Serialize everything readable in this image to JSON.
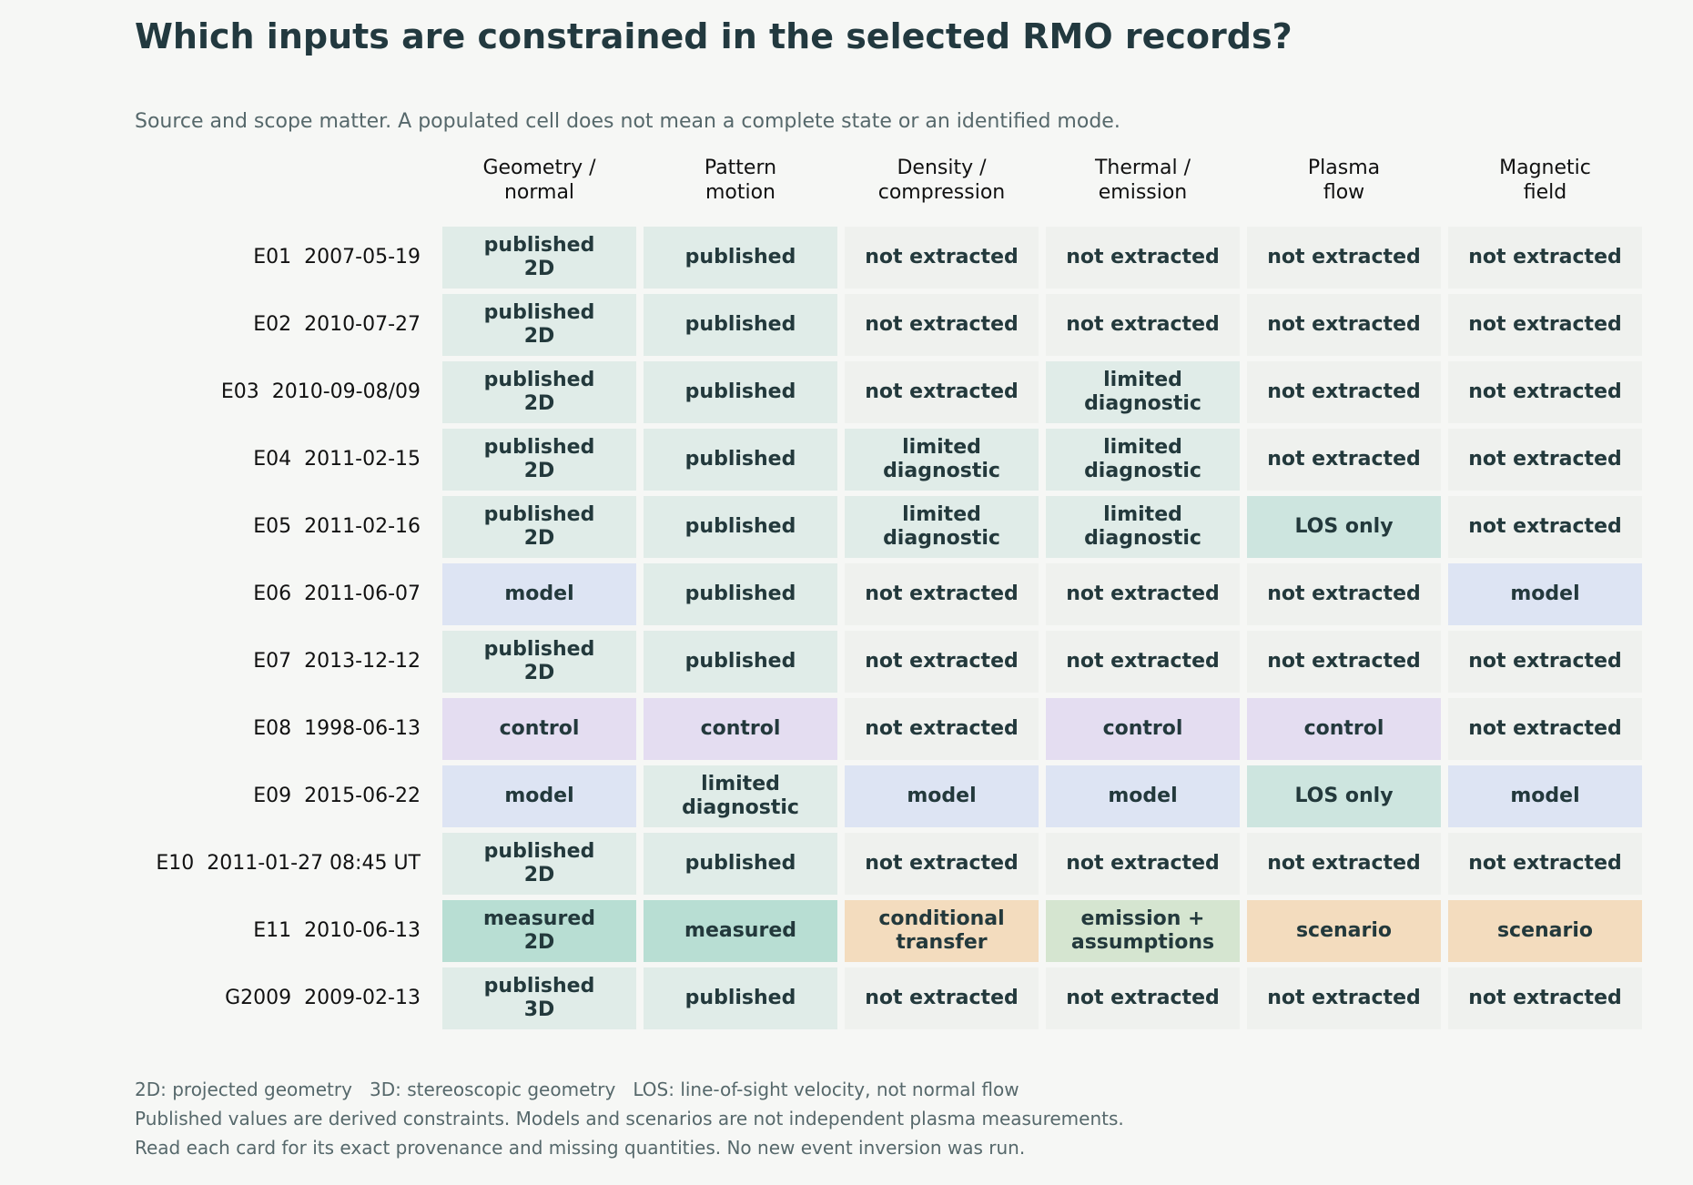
{
  "title": "Which inputs are constrained in the selected RMO records?",
  "subtitle": "Source and scope matter. A populated cell does not mean a complete state or an identified mode.",
  "chart_data": {
    "type": "table",
    "columns": [
      "Geometry /\nnormal",
      "Pattern\nmotion",
      "Density /\ncompression",
      "Thermal /\nemission",
      "Plasma\nflow",
      "Magnetic\nfield"
    ],
    "rows": [
      {
        "label": "E01  2007-05-19",
        "cells": [
          "published\n2D",
          "published",
          "not extracted",
          "not extracted",
          "not extracted",
          "not extracted"
        ]
      },
      {
        "label": "E02  2010-07-27",
        "cells": [
          "published\n2D",
          "published",
          "not extracted",
          "not extracted",
          "not extracted",
          "not extracted"
        ]
      },
      {
        "label": "E03  2010-09-08/09",
        "cells": [
          "published\n2D",
          "published",
          "not extracted",
          "limited\ndiagnostic",
          "not extracted",
          "not extracted"
        ]
      },
      {
        "label": "E04  2011-02-15",
        "cells": [
          "published\n2D",
          "published",
          "limited\ndiagnostic",
          "limited\ndiagnostic",
          "not extracted",
          "not extracted"
        ]
      },
      {
        "label": "E05  2011-02-16",
        "cells": [
          "published\n2D",
          "published",
          "limited\ndiagnostic",
          "limited\ndiagnostic",
          "LOS only",
          "not extracted"
        ]
      },
      {
        "label": "E06  2011-06-07",
        "cells": [
          "model",
          "published",
          "not extracted",
          "not extracted",
          "not extracted",
          "model"
        ]
      },
      {
        "label": "E07  2013-12-12",
        "cells": [
          "published\n2D",
          "published",
          "not extracted",
          "not extracted",
          "not extracted",
          "not extracted"
        ]
      },
      {
        "label": "E08  1998-06-13",
        "cells": [
          "control",
          "control",
          "not extracted",
          "control",
          "control",
          "not extracted"
        ]
      },
      {
        "label": "E09  2015-06-22",
        "cells": [
          "model",
          "limited\ndiagnostic",
          "model",
          "model",
          "LOS only",
          "model"
        ]
      },
      {
        "label": "E10  2011-01-27 08:45 UT",
        "cells": [
          "published\n2D",
          "published",
          "not extracted",
          "not extracted",
          "not extracted",
          "not extracted"
        ]
      },
      {
        "label": "E11  2010-06-13",
        "cells": [
          "measured\n2D",
          "measured",
          "conditional\ntransfer",
          "emission +\nassumptions",
          "scenario",
          "scenario"
        ]
      },
      {
        "label": "G2009  2009-02-13",
        "cells": [
          "published\n3D",
          "published",
          "not extracted",
          "not extracted",
          "not extracted",
          "not extracted"
        ]
      }
    ],
    "category_colors": {
      "published": "#e0ece8",
      "limited": "#e0ece8",
      "not extracted": "#eff1ee",
      "model": "#dde4f3",
      "control": "#e4ddf1",
      "LOS only": "#cde5df",
      "measured": "#b8ded3",
      "conditional": "#f3dcbe",
      "scenario": "#f3dcbe",
      "emission": "#d5e5d0"
    }
  },
  "footer": [
    "2D: projected geometry   3D: stereoscopic geometry   LOS: line-of-sight velocity, not normal flow",
    "Published values are derived constraints. Models and scenarios are not independent plasma measurements.",
    "Read each card for its exact provenance and missing quantities. No new event inversion was run."
  ]
}
